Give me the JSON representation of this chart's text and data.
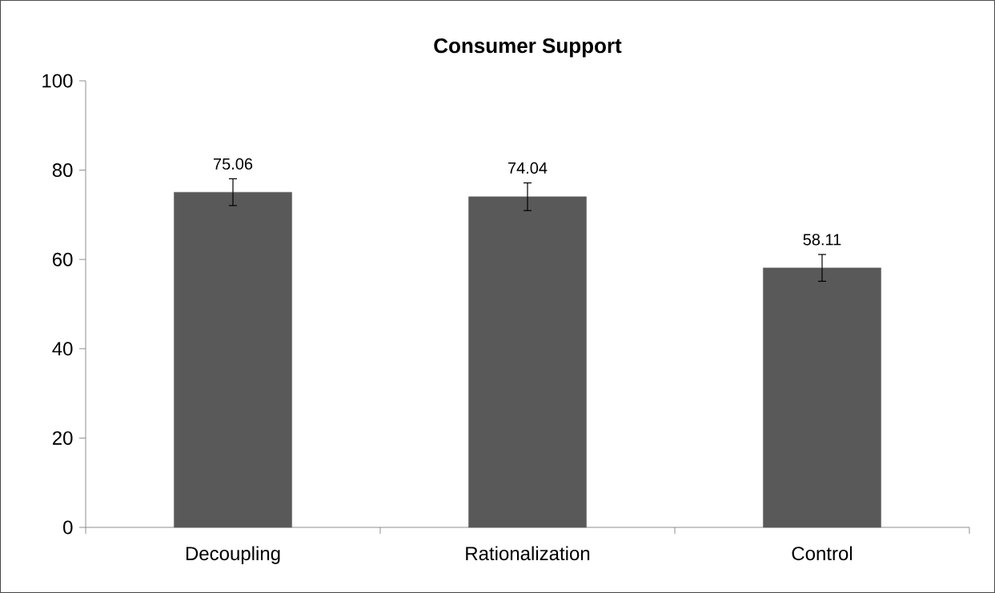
{
  "chart_data": {
    "type": "bar",
    "title": "Consumer Support",
    "categories": [
      "Decoupling",
      "Rationalization",
      "Control"
    ],
    "values": [
      75.06,
      74.04,
      58.11
    ],
    "errors": [
      3,
      3.1,
      3
    ],
    "color": "#595959",
    "ylim": [
      0,
      100
    ],
    "yticks": [
      0,
      20,
      40,
      60,
      80,
      100
    ],
    "data_labels": true,
    "grid": false
  }
}
